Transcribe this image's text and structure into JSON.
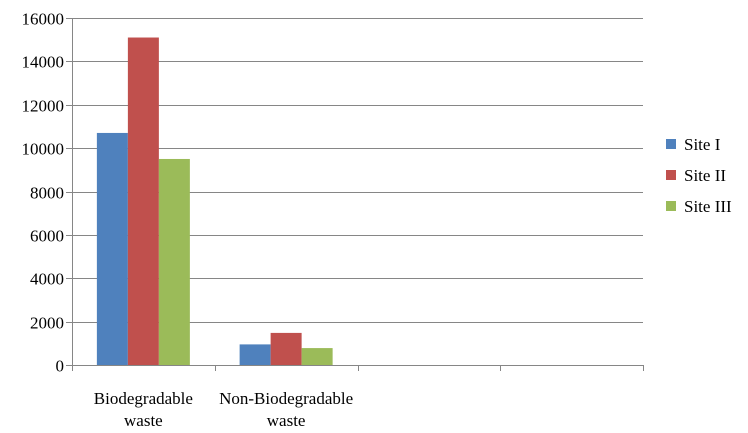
{
  "chart_data": {
    "type": "bar",
    "categories": [
      [
        "Biodegradable",
        "waste"
      ],
      [
        "Non-Biodegradable",
        "waste"
      ],
      [],
      []
    ],
    "series": [
      {
        "name": "Site I",
        "color": "#4F81BD",
        "values": [
          10700,
          950,
          null,
          null
        ]
      },
      {
        "name": "Site II",
        "color": "#C0504D",
        "values": [
          15100,
          1480,
          null,
          null
        ]
      },
      {
        "name": "Site III",
        "color": "#9BBB59",
        "values": [
          9500,
          780,
          null,
          null
        ]
      }
    ],
    "ylim": [
      0,
      16000
    ],
    "yticks": [
      "0",
      "2000",
      "4000",
      "6000",
      "8000",
      "10000",
      "12000",
      "14000",
      "16000"
    ],
    "grid": true,
    "legend_position": "right",
    "colors": {
      "grid": "#868686",
      "axis": "#868686"
    }
  }
}
